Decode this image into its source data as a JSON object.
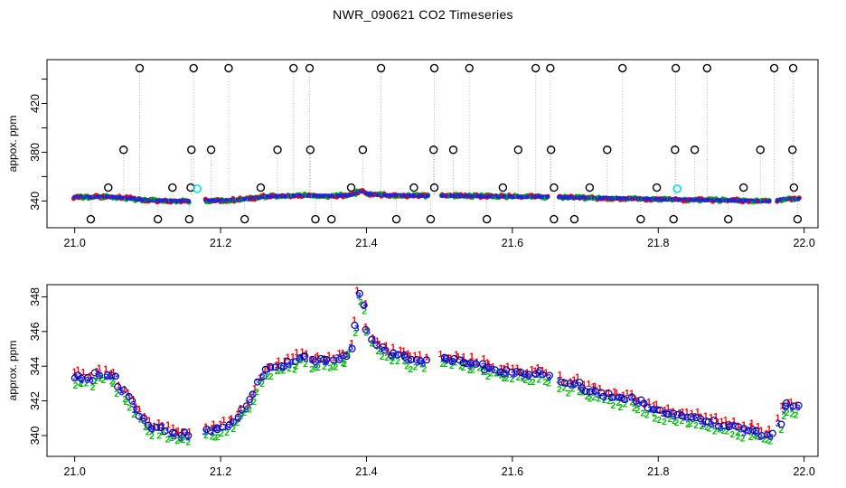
{
  "title": "NWR_090621  CO2 Timeseries",
  "colors": {
    "series1_red": "#ff0000",
    "series2_green": "#00bb00",
    "series3_blue": "#2323ee",
    "marker_navy": "#000099",
    "band_blue": "#2222dd",
    "spike_circle": "#000000",
    "spike_line": "#b0b0b0",
    "cyan_marker": "#00e0e0",
    "axis": "#000000"
  },
  "chart_data": [
    {
      "type": "scatter",
      "panel": "top",
      "ylabel": "appox. ppm",
      "xlim": [
        20.962,
        22.019
      ],
      "ylim": [
        318,
        456
      ],
      "grid": false,
      "xticks": [
        {
          "v": 21.0,
          "label": "21.0"
        },
        {
          "v": 21.2,
          "label": "21.2"
        },
        {
          "v": 21.4,
          "label": "21.4"
        },
        {
          "v": 21.6,
          "label": "21.6"
        },
        {
          "v": 21.8,
          "label": "21.8"
        },
        {
          "v": 22.0,
          "label": "22.0"
        }
      ],
      "yticks": [
        {
          "v": 340,
          "label": "340"
        },
        {
          "v": 360,
          "label": ""
        },
        {
          "v": 380,
          "label": "380"
        },
        {
          "v": 400,
          "label": ""
        },
        {
          "v": 420,
          "label": "420"
        },
        {
          "v": 440,
          "label": ""
        }
      ],
      "band_description": "dense blue/red/green points following the same CO2 curve as bottom panel, ~340-348 ppm",
      "spike_levels": [
        {
          "v": 449,
          "times": [
            21.089,
            21.163,
            21.211,
            21.3,
            21.322,
            21.42,
            21.493,
            21.541,
            21.632,
            21.652,
            21.751,
            21.824,
            21.867,
            21.959,
            21.985
          ]
        },
        {
          "v": 382,
          "times": [
            21.067,
            21.16,
            21.187,
            21.278,
            21.323,
            21.395,
            21.492,
            21.519,
            21.608,
            21.653,
            21.73,
            21.823,
            21.85,
            21.94,
            21.984
          ]
        },
        {
          "v": 351,
          "times": [
            21.046,
            21.134,
            21.159,
            21.255,
            21.379,
            21.465,
            21.493,
            21.587,
            21.657,
            21.706,
            21.798,
            21.917,
            21.986
          ]
        },
        {
          "v": 325,
          "times": [
            21.022,
            21.114,
            21.157,
            21.233,
            21.33,
            21.352,
            21.441,
            21.488,
            21.565,
            21.657,
            21.685,
            21.776,
            21.821,
            21.896,
            21.991
          ]
        }
      ],
      "cyan_markers": [
        {
          "t": 21.168,
          "v": 350
        },
        {
          "t": 21.826,
          "v": 350
        }
      ]
    },
    {
      "type": "scatter",
      "panel": "bottom",
      "ylabel": "approx. ppm",
      "xlim": [
        20.962,
        22.019
      ],
      "ylim": [
        338.8,
        348.7
      ],
      "grid": false,
      "xticks": [
        {
          "v": 21.0,
          "label": "21.0"
        },
        {
          "v": 21.2,
          "label": "21.2"
        },
        {
          "v": 21.4,
          "label": "21.4"
        },
        {
          "v": 21.6,
          "label": "21.6"
        },
        {
          "v": 21.8,
          "label": "21.8"
        },
        {
          "v": 22.0,
          "label": "22.0"
        }
      ],
      "yticks": [
        {
          "v": 340,
          "label": "340"
        },
        {
          "v": 342,
          "label": "342"
        },
        {
          "v": 344,
          "label": "344"
        },
        {
          "v": 346,
          "label": "346"
        },
        {
          "v": 348,
          "label": "348"
        }
      ],
      "point_glyphs": [
        {
          "glyph": "1",
          "color_key": "series1_red"
        },
        {
          "glyph": "2",
          "color_key": "series2_green"
        },
        {
          "glyph": "3",
          "color_key": "series3_blue"
        },
        {
          "glyph": "o-circle",
          "color_key": "marker_navy"
        }
      ],
      "gaps": [
        [
          21.159,
          21.177
        ],
        [
          21.486,
          21.501
        ],
        [
          21.65,
          21.664
        ],
        [
          21.956,
          21.964
        ]
      ],
      "curve_anchors": [
        [
          21.0,
          343.3
        ],
        [
          21.008,
          343.45
        ],
        [
          21.016,
          343.15
        ],
        [
          21.024,
          343.3
        ],
        [
          21.03,
          343.55
        ],
        [
          21.038,
          343.35
        ],
        [
          21.046,
          343.4
        ],
        [
          21.054,
          343.3
        ],
        [
          21.06,
          342.65
        ],
        [
          21.068,
          342.35
        ],
        [
          21.076,
          342.1
        ],
        [
          21.084,
          341.55
        ],
        [
          21.092,
          341.05
        ],
        [
          21.1,
          340.6
        ],
        [
          21.11,
          340.35
        ],
        [
          21.12,
          340.25
        ],
        [
          21.13,
          340.1
        ],
        [
          21.14,
          339.95
        ],
        [
          21.15,
          340.1
        ],
        [
          21.158,
          340.0
        ],
        [
          21.178,
          340.25
        ],
        [
          21.19,
          340.35
        ],
        [
          21.2,
          340.3
        ],
        [
          21.21,
          340.55
        ],
        [
          21.22,
          340.9
        ],
        [
          21.23,
          341.35
        ],
        [
          21.24,
          341.9
        ],
        [
          21.25,
          342.7
        ],
        [
          21.258,
          343.3
        ],
        [
          21.266,
          343.85
        ],
        [
          21.275,
          344.0
        ],
        [
          21.285,
          343.95
        ],
        [
          21.295,
          344.2
        ],
        [
          21.305,
          344.35
        ],
        [
          21.315,
          344.4
        ],
        [
          21.325,
          344.3
        ],
        [
          21.335,
          344.2
        ],
        [
          21.345,
          344.3
        ],
        [
          21.355,
          344.25
        ],
        [
          21.365,
          344.4
        ],
        [
          21.375,
          344.55
        ],
        [
          21.382,
          345.6
        ],
        [
          21.387,
          347.2
        ],
        [
          21.391,
          348.2
        ],
        [
          21.395,
          347.7
        ],
        [
          21.4,
          346.4
        ],
        [
          21.406,
          345.7
        ],
        [
          21.413,
          345.25
        ],
        [
          21.42,
          344.95
        ],
        [
          21.43,
          344.7
        ],
        [
          21.44,
          344.55
        ],
        [
          21.452,
          344.45
        ],
        [
          21.465,
          344.35
        ],
        [
          21.478,
          344.3
        ],
        [
          21.505,
          344.3
        ],
        [
          21.515,
          344.25
        ],
        [
          21.525,
          344.35
        ],
        [
          21.535,
          344.25
        ],
        [
          21.545,
          344.15
        ],
        [
          21.555,
          344.05
        ],
        [
          21.565,
          343.85
        ],
        [
          21.575,
          343.7
        ],
        [
          21.585,
          343.6
        ],
        [
          21.595,
          343.7
        ],
        [
          21.605,
          343.55
        ],
        [
          21.615,
          343.45
        ],
        [
          21.625,
          343.55
        ],
        [
          21.635,
          343.5
        ],
        [
          21.645,
          343.4
        ],
        [
          21.668,
          343.1
        ],
        [
          21.68,
          342.95
        ],
        [
          21.692,
          342.8
        ],
        [
          21.704,
          342.55
        ],
        [
          21.716,
          342.35
        ],
        [
          21.728,
          342.4
        ],
        [
          21.74,
          342.2
        ],
        [
          21.752,
          342.05
        ],
        [
          21.764,
          341.95
        ],
        [
          21.776,
          341.75
        ],
        [
          21.788,
          341.55
        ],
        [
          21.8,
          341.35
        ],
        [
          21.812,
          341.25
        ],
        [
          21.824,
          341.1
        ],
        [
          21.836,
          341.0
        ],
        [
          21.848,
          341.05
        ],
        [
          21.86,
          340.9
        ],
        [
          21.872,
          340.75
        ],
        [
          21.884,
          340.55
        ],
        [
          21.896,
          340.5
        ],
        [
          21.908,
          340.4
        ],
        [
          21.92,
          340.35
        ],
        [
          21.932,
          340.25
        ],
        [
          21.944,
          340.05
        ],
        [
          21.952,
          339.85
        ],
        [
          21.96,
          339.9
        ],
        [
          21.966,
          340.6
        ],
        [
          21.97,
          341.45
        ],
        [
          21.976,
          341.75
        ],
        [
          21.984,
          341.55
        ],
        [
          21.992,
          341.65
        ]
      ]
    }
  ]
}
